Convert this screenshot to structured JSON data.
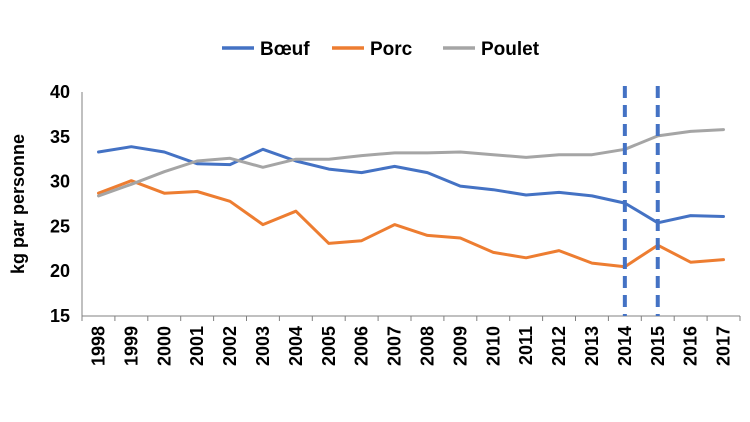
{
  "chart_data": {
    "type": "line",
    "title": "",
    "xlabel": "",
    "ylabel": "kg par personne",
    "ylim": [
      15,
      40
    ],
    "yticks": [
      15,
      20,
      25,
      30,
      35,
      40
    ],
    "grid": false,
    "legend_position": "top-center",
    "categories": [
      "1998",
      "1999",
      "2000",
      "2001",
      "2002",
      "2003",
      "2004",
      "2005",
      "2006",
      "2007",
      "2008",
      "2009",
      "2010",
      "2011",
      "2012",
      "2013",
      "2014",
      "2015",
      "2016",
      "2017"
    ],
    "series": [
      {
        "name": "Bœuf",
        "color": "#4472C4",
        "values": [
          33.3,
          33.9,
          33.3,
          32.0,
          31.9,
          33.6,
          32.3,
          31.4,
          31.0,
          31.7,
          31.0,
          29.5,
          29.1,
          28.5,
          28.8,
          28.4,
          27.6,
          25.4,
          26.2,
          26.1
        ]
      },
      {
        "name": "Porc",
        "color": "#ED7D31",
        "values": [
          28.7,
          30.1,
          28.7,
          28.9,
          27.8,
          25.2,
          26.7,
          23.1,
          23.4,
          25.2,
          24.0,
          23.7,
          22.1,
          21.5,
          22.3,
          20.9,
          20.5,
          22.9,
          21.0,
          21.3
        ]
      },
      {
        "name": "Poulet",
        "color": "#A5A5A5",
        "values": [
          28.4,
          29.7,
          31.1,
          32.3,
          32.6,
          31.6,
          32.5,
          32.5,
          32.9,
          33.2,
          33.2,
          33.3,
          33.0,
          32.7,
          33.0,
          33.0,
          33.6,
          35.1,
          35.6,
          35.8
        ]
      }
    ],
    "vertical_markers": [
      {
        "x": "2014",
        "color": "#4472C4",
        "style": "dashed"
      },
      {
        "x": "2015",
        "color": "#4472C4",
        "style": "dashed"
      }
    ]
  }
}
